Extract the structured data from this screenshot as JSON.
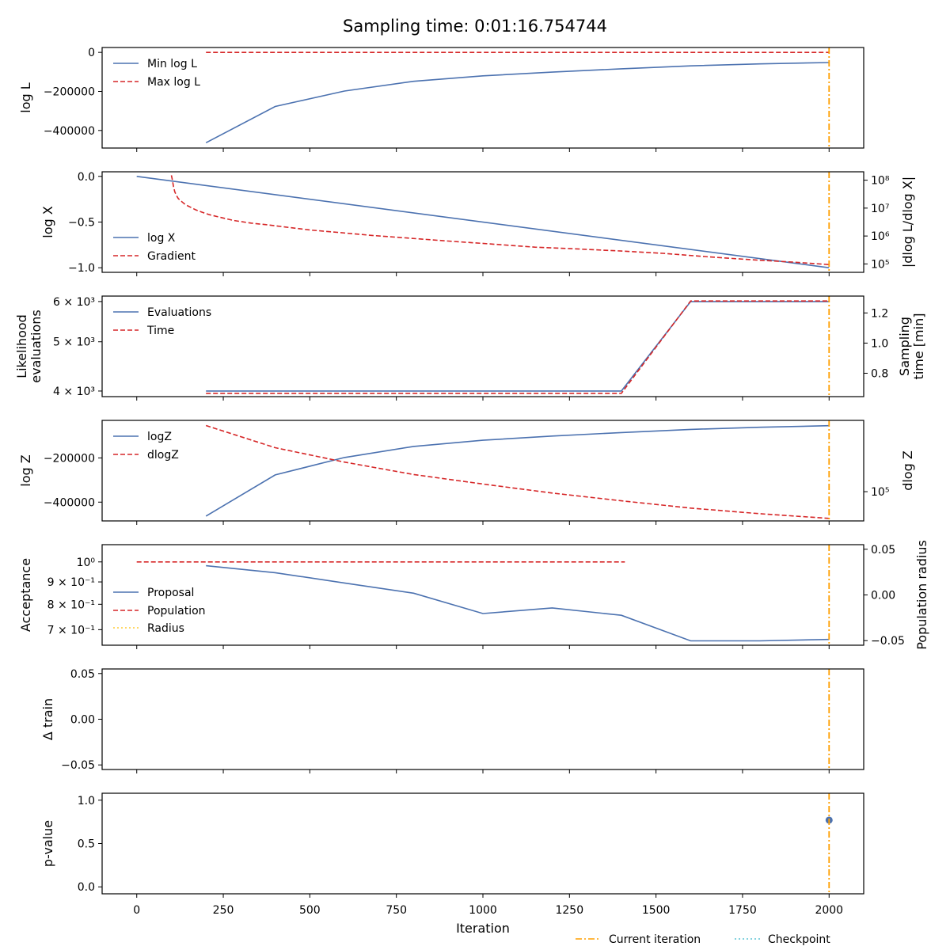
{
  "title": "Sampling time: 0:01:16.754744",
  "colors": {
    "blue": "#4c72b0",
    "red": "#d62728",
    "orange": "#ff9f00",
    "yellow": "#ffcc33",
    "cyan": "#5bc4d4"
  },
  "chart_data": {
    "type": "line",
    "x_axis": {
      "label": "Iteration",
      "range": [
        -100,
        2100
      ],
      "ticks": [
        0,
        250,
        500,
        750,
        1000,
        1250,
        1500,
        1750,
        2000
      ],
      "tick_labels": [
        "0",
        "250",
        "500",
        "750",
        "1000",
        "1250",
        "1500",
        "1750",
        "2000"
      ]
    },
    "current_iteration": 2000,
    "figure_legend": [
      {
        "label": "Current iteration",
        "color": "#ff9f00",
        "style": "dashdot"
      },
      {
        "label": "Checkpoint",
        "color": "#5bc4d4",
        "style": "dotted"
      }
    ],
    "panels": [
      {
        "id": "logl",
        "ylabel": "log L",
        "ylim": [
          -490000,
          25000
        ],
        "yticks": [
          0,
          -200000,
          -400000
        ],
        "ytick_labels": [
          "0",
          "−200000",
          "−400000"
        ],
        "series": [
          {
            "name": "Min log L",
            "color": "#4c72b0",
            "style": "solid",
            "x": [
              200,
              400,
              600,
              800,
              1000,
              1200,
              1400,
              1600,
              1800,
              2000
            ],
            "y": [
              -463000,
              -277000,
              -198000,
              -148000,
              -120000,
              -101000,
              -84000,
              -69000,
              -59000,
              -52000
            ]
          },
          {
            "name": "Max log L",
            "color": "#d62728",
            "style": "dashed",
            "x": [
              200,
              2000
            ],
            "y": [
              0,
              0
            ]
          }
        ],
        "legend": [
          "Min log L",
          "Max log L"
        ]
      },
      {
        "id": "logx",
        "ylabel": "log X",
        "ylim": [
          -1.05,
          0.05
        ],
        "yticks": [
          0.0,
          -0.5,
          -1.0
        ],
        "ytick_labels": [
          "0.0",
          "−0.5",
          "−1.0"
        ],
        "y2label": "|dlog L/dlog X|",
        "y2_log": true,
        "y2lim": [
          50000,
          200000000
        ],
        "y2ticks": [
          100000,
          1000000,
          10000000,
          100000000
        ],
        "y2tick_labels": [
          "10⁵",
          "10⁶",
          "10⁷",
          "10⁸"
        ],
        "series": [
          {
            "name": "log X",
            "color": "#4c72b0",
            "style": "solid",
            "axis": "y",
            "x": [
              0,
              2000
            ],
            "y": [
              0.0,
              -1.0
            ]
          },
          {
            "name": "Gradient",
            "color": "#d62728",
            "style": "dashed",
            "axis": "y2",
            "x": [
              100,
              103,
              106,
              110,
              115,
              120,
              130,
              140,
              155,
              170,
              190,
              210,
              240,
              280,
              330,
              380,
              430,
              500,
              580,
              680,
              780,
              900,
              1020,
              1150,
              1280,
              1400,
              1520,
              1650,
              1780,
              1900,
              2000
            ],
            "y": [
              150000000,
              100000000,
              60000000,
              38000000,
              28000000,
              22000000,
              17000000,
              13500000,
              10800000,
              8700000,
              7000000,
              5800000,
              4700000,
              3600000,
              2900000,
              2500000,
              2100000,
              1650000,
              1350000,
              1050000,
              850000,
              660000,
              520000,
              400000,
              340000,
              290000,
              240000,
              180000,
              140000,
              115000,
              95000
            ]
          }
        ],
        "legend": [
          "log X",
          "Gradient"
        ]
      },
      {
        "id": "evals",
        "ylabel": "Likelihood evaluations",
        "y_log": true,
        "ylim": [
          3900,
          6150
        ],
        "yticks": [
          4000,
          5000,
          6000
        ],
        "ytick_labels": [
          "4 × 10³",
          "5 × 10³",
          "6 × 10³"
        ],
        "y2label": "Sampling time [min]",
        "y2lim": [
          0.6449,
          1.3117
        ],
        "y2ticks": [
          0.8,
          1.0,
          1.2
        ],
        "y2tick_labels": [
          "0.8",
          "1.0",
          "1.2"
        ],
        "series": [
          {
            "name": "Evaluations",
            "color": "#4c72b0",
            "style": "solid",
            "axis": "y",
            "x": [
              200,
              400,
              600,
              800,
              1000,
              1200,
              1400,
              1600,
              1800,
              2000
            ],
            "y": [
              4000,
              4000,
              4000,
              4000,
              4000,
              4000,
              4000,
              6000,
              6000,
              6000
            ]
          },
          {
            "name": "Time",
            "color": "#d62728",
            "style": "dashed",
            "axis": "y2",
            "x": [
              200,
              400,
              600,
              800,
              1000,
              1200,
              1400,
              1600,
              1800,
              2000
            ],
            "y": [
              0.6667,
              0.6667,
              0.6667,
              0.6667,
              0.6667,
              0.6667,
              0.6667,
              1.279,
              1.279,
              1.279
            ]
          }
        ],
        "legend": [
          "Evaluations",
          "Time"
        ]
      },
      {
        "id": "logz",
        "ylabel": "log Z",
        "ylim": [
          -485000,
          -30000
        ],
        "yticks": [
          -200000,
          -400000
        ],
        "ytick_labels": [
          "−200000",
          "−400000"
        ],
        "y2label": "dlog Z",
        "y2_log": true,
        "y2lim": [
          53000,
          470000
        ],
        "y2ticks": [
          100000
        ],
        "y2tick_labels": [
          "10⁵"
        ],
        "series": [
          {
            "name": "logZ",
            "color": "#4c72b0",
            "style": "solid",
            "axis": "y",
            "x": [
              200,
              400,
              600,
              800,
              1000,
              1200,
              1400,
              1600,
              1800,
              2000
            ],
            "y": [
              -463000,
              -277000,
              -198000,
              -148000,
              -120000,
              -101000,
              -85000,
              -71000,
              -61000,
              -54000
            ]
          },
          {
            "name": "dlogZ",
            "color": "#d62728",
            "style": "dashed",
            "axis": "y2",
            "x": [
              200,
              400,
              600,
              800,
              1000,
              1200,
              1400,
              1600,
              1800,
              2000
            ],
            "y": [
              420000,
              260000,
              190000,
              145000,
              118000,
              97000,
              82000,
              70000,
              62000,
              56000
            ]
          }
        ],
        "legend": [
          "logZ",
          "dlogZ"
        ]
      },
      {
        "id": "accept",
        "ylabel": "Acceptance",
        "y_log": true,
        "ylim": [
          0.645,
          1.095
        ],
        "yticks": [
          1.0,
          0.9,
          0.8,
          0.7
        ],
        "ytick_labels": [
          "10⁰",
          "9 × 10⁻¹",
          "8 × 10⁻¹",
          "7 × 10⁻¹"
        ],
        "y2label": "Population radius",
        "y2lim": [
          -0.055,
          0.055
        ],
        "y2ticks": [
          0.05,
          0.0,
          -0.05
        ],
        "y2tick_labels": [
          "0.05",
          "0.00",
          "−0.05"
        ],
        "series": [
          {
            "name": "Proposal",
            "color": "#4c72b0",
            "style": "solid",
            "axis": "y",
            "x": [
              200,
              400,
              600,
              800,
              1000,
              1200,
              1400,
              1600,
              1800,
              2000
            ],
            "y": [
              0.98,
              0.945,
              0.895,
              0.848,
              0.762,
              0.785,
              0.755,
              0.66,
              0.66,
              0.665
            ]
          },
          {
            "name": "Population",
            "color": "#d62728",
            "style": "dashed",
            "axis": "y",
            "x": [
              0,
              1410
            ],
            "y": [
              1.0,
              1.0
            ]
          },
          {
            "name": "Radius",
            "color": "#ffcc33",
            "style": "dotted",
            "axis": "y2",
            "x": [],
            "y": []
          }
        ],
        "legend": [
          "Proposal",
          "Population",
          "Radius"
        ]
      },
      {
        "id": "dtrain",
        "ylabel": "Δ train",
        "ylim": [
          -0.055,
          0.055
        ],
        "yticks": [
          0.05,
          0.0,
          -0.05
        ],
        "ytick_labels": [
          "0.05",
          "0.00",
          "−0.05"
        ],
        "series": [],
        "legend": []
      },
      {
        "id": "pvalue",
        "ylabel": "p-value",
        "ylim": [
          -0.08,
          1.08
        ],
        "yticks": [
          1.0,
          0.5,
          0.0
        ],
        "ytick_labels": [
          "1.0",
          "0.5",
          "0.0"
        ],
        "series": [
          {
            "name": "p-value",
            "color": "#4c72b0",
            "style": "marker",
            "axis": "y",
            "x": [
              2000
            ],
            "y": [
              0.77
            ]
          }
        ],
        "legend": []
      }
    ]
  }
}
